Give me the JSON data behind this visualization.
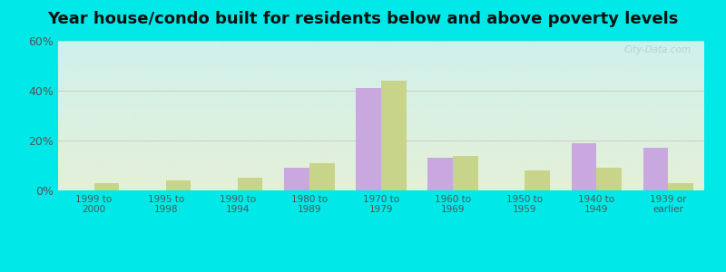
{
  "title": "Year house/condo built for residents below and above poverty levels",
  "categories": [
    "1999 to\n2000",
    "1995 to\n1998",
    "1990 to\n1994",
    "1980 to\n1989",
    "1970 to\n1979",
    "1960 to\n1969",
    "1950 to\n1959",
    "1940 to\n1949",
    "1939 or\nearlier"
  ],
  "below_poverty": [
    0,
    0,
    0,
    9,
    41,
    13,
    0,
    19,
    17
  ],
  "above_poverty": [
    3,
    4,
    5,
    11,
    44,
    14,
    8,
    9,
    3
  ],
  "below_color": "#c9a8e0",
  "above_color": "#c8d48a",
  "ylim": [
    0,
    60
  ],
  "yticks": [
    0,
    20,
    40,
    60
  ],
  "ytick_labels": [
    "0%",
    "20%",
    "40%",
    "60%"
  ],
  "grad_top": "#d0f0ec",
  "grad_bottom": "#e4f0d8",
  "grid_color": "#cccccc",
  "title_fontsize": 13,
  "outer_bg": "#00e8e8",
  "watermark": "City-Data.com"
}
